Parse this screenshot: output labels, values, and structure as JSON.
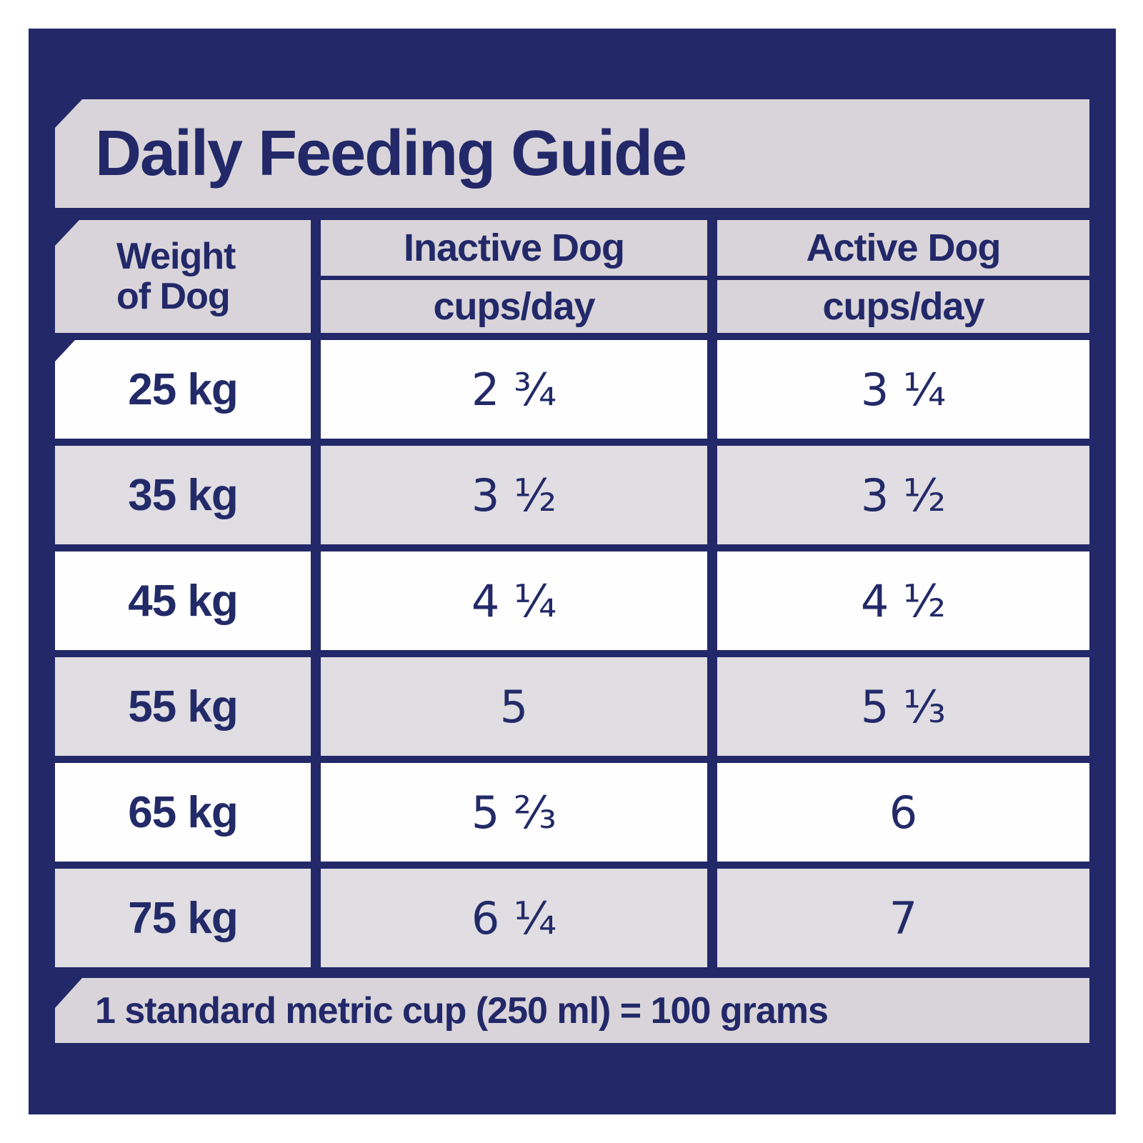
{
  "title": "Daily Feeding Guide",
  "table": {
    "weight_header": {
      "line1": "Weight",
      "line2": "of Dog"
    },
    "columns": [
      {
        "label": "Inactive Dog",
        "unit": "cups/day"
      },
      {
        "label": "Active Dog",
        "unit": "cups/day"
      }
    ],
    "rows": [
      {
        "weight": "25 kg",
        "inactive": "2 ¾",
        "active": "3 ¼"
      },
      {
        "weight": "35 kg",
        "inactive": "3 ½",
        "active": "3 ½"
      },
      {
        "weight": "45 kg",
        "inactive": "4 ¼",
        "active": "4 ½"
      },
      {
        "weight": "55 kg",
        "inactive": "5",
        "active": "5 ⅓"
      },
      {
        "weight": "65 kg",
        "inactive": "5 ⅔",
        "active": "6"
      },
      {
        "weight": "75 kg",
        "inactive": "6 ¼",
        "active": "7"
      }
    ]
  },
  "footer": {
    "note": "1 standard metric cup (250 ml) = 100 grams"
  },
  "colors": {
    "panel_navy": "#222868",
    "band_gray": "#d9d4d9",
    "row_white": "#fefefe",
    "row_gray": "#e0dde3",
    "text_navy": "#232a68",
    "page_background": "#ffffff"
  },
  "chart_data": {
    "type": "table",
    "title": "Daily Feeding Guide",
    "columns": [
      "Weight of Dog",
      "Inactive Dog (cups/day)",
      "Active Dog (cups/day)"
    ],
    "rows": [
      [
        "25 kg",
        "2 ¾",
        "3 ¼"
      ],
      [
        "35 kg",
        "3 ½",
        "3 ½"
      ],
      [
        "45 kg",
        "4 ¼",
        "4 ½"
      ],
      [
        "55 kg",
        "5",
        "5 ⅓"
      ],
      [
        "65 kg",
        "5 ⅔",
        "6"
      ],
      [
        "75 kg",
        "6 ¼",
        "7"
      ]
    ],
    "note": "1 standard metric cup (250 ml) = 100 grams"
  }
}
